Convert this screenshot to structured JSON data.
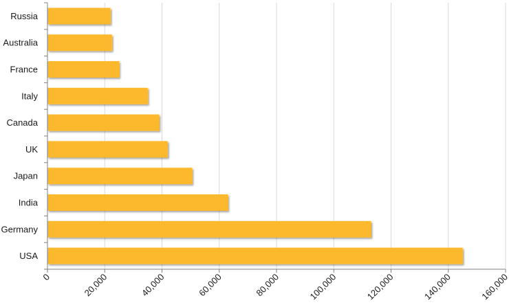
{
  "chart_data": {
    "type": "bar",
    "orientation": "horizontal",
    "categories": [
      "Russia",
      "Australia",
      "France",
      "Italy",
      "Canada",
      "UK",
      "Japan",
      "India",
      "Germany",
      "USA"
    ],
    "values": [
      22000,
      22500,
      25000,
      35000,
      39000,
      42000,
      50500,
      63000,
      113000,
      145000
    ],
    "xlim": [
      0,
      160000
    ],
    "xticks": [
      0,
      20000,
      40000,
      60000,
      80000,
      100000,
      120000,
      140000,
      160000
    ],
    "xtick_labels": [
      "0",
      "20,000",
      "40,000",
      "60,000",
      "80,000",
      "100,000",
      "120,000",
      "140,000",
      "160,000"
    ],
    "title": "",
    "xlabel": "",
    "ylabel": "",
    "grid": "vertical",
    "legend": "none",
    "bar_color": "#FDB92E",
    "grid_color": "#d9d9d9"
  }
}
